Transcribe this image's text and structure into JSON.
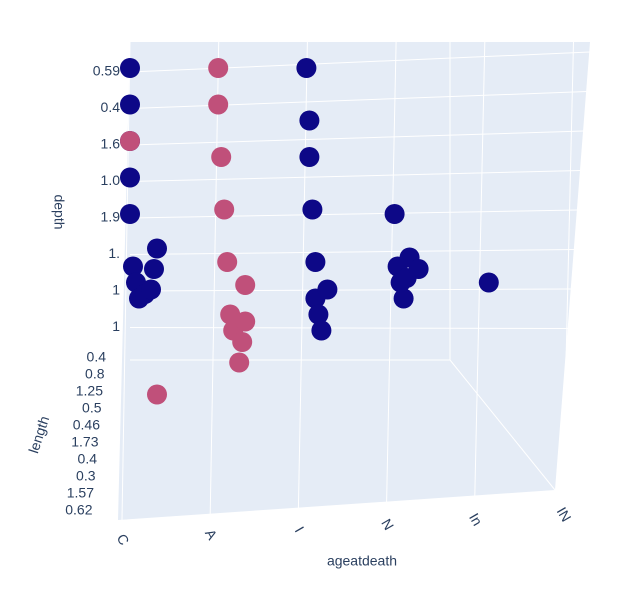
{
  "chart_data": {
    "type": "scatter3d",
    "xaxis_title": "ageatdeath",
    "yaxis_title": "depth",
    "zaxis_title": "length",
    "xcategories": [
      "C",
      "A",
      "I",
      "N",
      "In",
      "IN"
    ],
    "ycategories": [
      "0.59",
      "0.4",
      "1.6",
      "1.0",
      "1.9",
      "1.",
      "1",
      "1"
    ],
    "zcategories": [
      "0.4",
      "0.8",
      "1.25",
      "0.5",
      "0.46",
      "1.73",
      "0.4",
      "0.3",
      "1.57",
      "0.62"
    ],
    "series": [
      {
        "color": "#0d0887",
        "x": [
          "C",
          "C",
          "C",
          "C",
          "C",
          "C",
          "C",
          "C",
          "C",
          "C",
          "C",
          "C",
          "I",
          "I",
          "I",
          "I",
          "I",
          "I",
          "I",
          "I",
          "I",
          "N",
          "N",
          "N",
          "N",
          "N",
          "N",
          "N",
          "In"
        ],
        "y": [
          "0.59",
          "0.4",
          "1.6",
          "1.0",
          "1.9",
          "1.",
          "1.",
          "1.",
          "1.9",
          "1.0",
          "1.6",
          "0.4",
          "0.59",
          "0.4",
          "1.6",
          "1.0",
          "1.9",
          "1.",
          "1.",
          "1.",
          "1.0",
          "1.9",
          "1.",
          "1.",
          "1.",
          "1.9",
          "1.0",
          "1.6",
          "1."
        ],
        "z": [
          "0.4",
          "0.4",
          "0.4",
          "0.4",
          "0.4",
          "0.8",
          "1.25",
          "0.5",
          "1.73",
          "0.3",
          "1.57",
          "0.62",
          "0.4",
          "0.8",
          "0.8",
          "1.25",
          "0.5",
          "0.5",
          "0.46",
          "1.73",
          "0.3",
          "0.4",
          "0.8",
          "1.25",
          "0.5",
          "0.46",
          "1.73",
          "1.57",
          "1.25"
        ]
      },
      {
        "color": "#c0507a",
        "x": [
          "C",
          "C",
          "A",
          "A",
          "A",
          "A",
          "A",
          "A",
          "A",
          "A",
          "A",
          "A",
          "A"
        ],
        "y": [
          "1.6",
          "1.",
          "0.59",
          "0.4",
          "1.6",
          "1.0",
          "1.9",
          "1.",
          "1.",
          "1.",
          "1.9",
          "1.0",
          "1.6"
        ],
        "z": [
          "0.4",
          "0.62",
          "0.4",
          "0.4",
          "0.8",
          "1.25",
          "0.5",
          "0.46",
          "1.73",
          "0.3",
          "1.57",
          "0.62",
          "0.62"
        ]
      }
    ]
  }
}
